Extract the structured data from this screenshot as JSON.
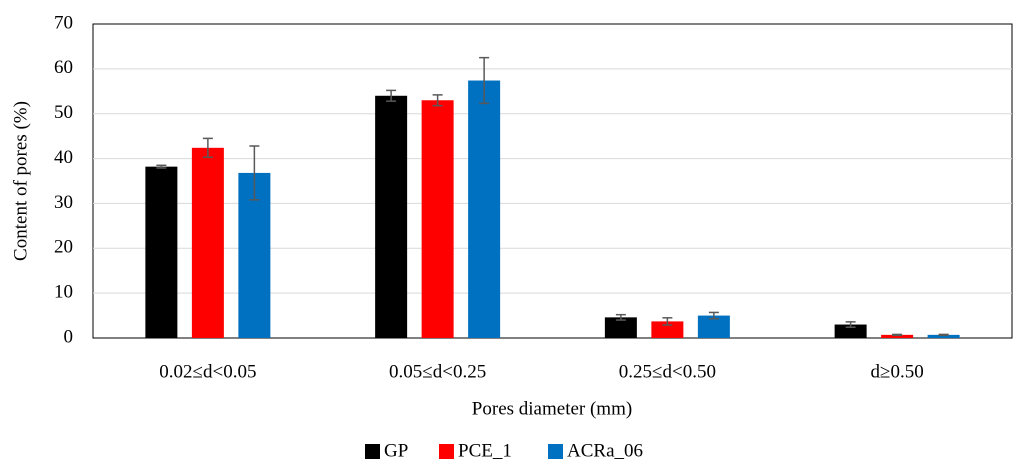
{
  "chart_data": {
    "type": "bar",
    "x_label": "Pores diameter (mm)",
    "y_label": "Content of pores (%)",
    "categories": [
      "0.02≤d<0.05",
      "0.05≤d<0.25",
      "0.25≤d<0.50",
      "d≥0.50"
    ],
    "series": [
      {
        "name": "GP",
        "color": "#000000",
        "values": [
          38.2,
          54.0,
          4.6,
          3.0
        ],
        "errors": [
          0.3,
          1.2,
          0.6,
          0.6
        ]
      },
      {
        "name": "PCE_1",
        "color": "#ff0000",
        "values": [
          42.4,
          53.0,
          3.7,
          0.7
        ],
        "errors": [
          2.1,
          1.2,
          0.8,
          0.1
        ]
      },
      {
        "name": "ACRa_06",
        "color": "#0070c0",
        "values": [
          36.8,
          57.4,
          5.0,
          0.7
        ],
        "errors": [
          6.0,
          5.1,
          0.7,
          0.1
        ]
      }
    ],
    "ylim": [
      0,
      70
    ],
    "yticks": [
      0,
      10,
      20,
      30,
      40,
      50,
      60,
      70
    ],
    "grid": true
  }
}
